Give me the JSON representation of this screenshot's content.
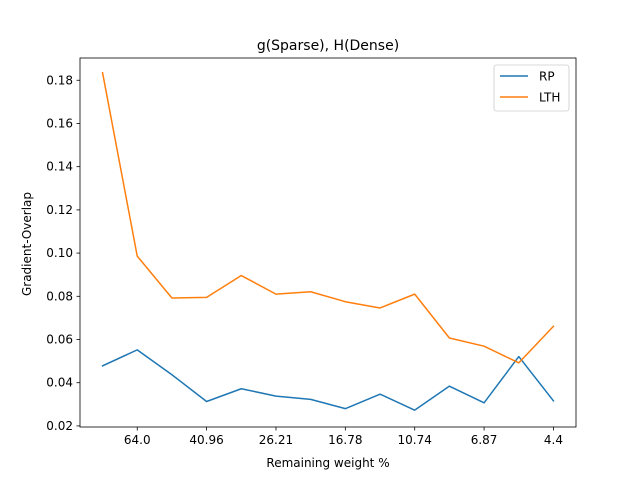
{
  "chart_data": {
    "type": "line",
    "title": "g(Sparse), H(Dense)",
    "xlabel": "Remaining weight %",
    "ylabel": "Gradient-Overlap",
    "x_positions": [
      0,
      1,
      2,
      3,
      4,
      5,
      6,
      7,
      8,
      9,
      10,
      11,
      12,
      13
    ],
    "xtick_positions": [
      1,
      3,
      5,
      7,
      9,
      11,
      13
    ],
    "xtick_labels": [
      "64.0",
      "40.96",
      "26.21",
      "16.78",
      "10.74",
      "6.87",
      "4.4"
    ],
    "ylim": [
      0.0195,
      0.1903
    ],
    "yticks": [
      0.02,
      0.04,
      0.06,
      0.08,
      0.1,
      0.12,
      0.14,
      0.16,
      0.18
    ],
    "ytick_labels": [
      "0.02",
      "0.04",
      "0.06",
      "0.08",
      "0.10",
      "0.12",
      "0.14",
      "0.16",
      "0.18"
    ],
    "legend_position": "top-right",
    "grid": false,
    "series": [
      {
        "name": "RP",
        "color": "#1f77b4",
        "values": [
          0.0478,
          0.0552,
          0.0437,
          0.0313,
          0.0372,
          0.0338,
          0.0323,
          0.028,
          0.0347,
          0.0273,
          0.0384,
          0.0307,
          0.0521,
          0.0316
        ]
      },
      {
        "name": "LTH",
        "color": "#ff7f0e",
        "values": [
          0.1835,
          0.0986,
          0.0792,
          0.0795,
          0.0896,
          0.081,
          0.0821,
          0.0775,
          0.0746,
          0.081,
          0.0607,
          0.0569,
          0.0492,
          0.0661
        ]
      }
    ]
  }
}
